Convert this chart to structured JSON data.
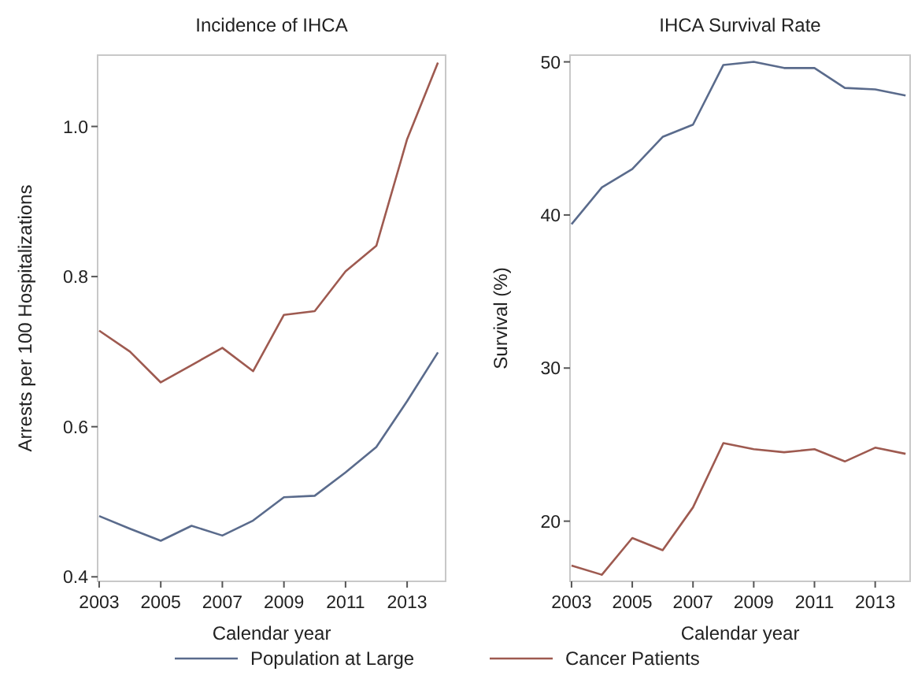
{
  "chart_data": [
    {
      "type": "line",
      "title": "Incidence of IHCA",
      "xlabel": "Calendar year",
      "ylabel": "Arrests per 100 Hospitalizations",
      "x": [
        2003,
        2004,
        2005,
        2006,
        2007,
        2008,
        2009,
        2010,
        2011,
        2012,
        2013,
        2014
      ],
      "xlim": [
        2002.95,
        2014.25
      ],
      "xticks": [
        2003,
        2005,
        2007,
        2009,
        2011,
        2013
      ],
      "ylim": [
        0.394,
        1.095
      ],
      "yticks": [
        {
          "value": 0.4,
          "label": "0.4"
        },
        {
          "value": 0.6,
          "label": "0.6"
        },
        {
          "value": 0.8,
          "label": "0.8"
        },
        {
          "value": 1.0,
          "label": "1.0"
        }
      ],
      "legend": "bottom",
      "series": [
        {
          "name": "Population at Large",
          "color": "#5a6b8c",
          "values": [
            0.481,
            0.464,
            0.448,
            0.468,
            0.455,
            0.475,
            0.506,
            0.508,
            0.539,
            0.573,
            0.634,
            0.699
          ]
        },
        {
          "name": "Cancer Patients",
          "color": "#9e5a50",
          "values": [
            0.728,
            0.7,
            0.659,
            0.682,
            0.705,
            0.674,
            0.749,
            0.754,
            0.807,
            0.841,
            0.983,
            1.085
          ]
        }
      ]
    },
    {
      "type": "line",
      "title": "IHCA Survival Rate",
      "xlabel": "Calendar year",
      "ylabel": "Survival (%)",
      "x": [
        2003,
        2004,
        2005,
        2006,
        2007,
        2008,
        2009,
        2010,
        2011,
        2012,
        2013,
        2014
      ],
      "xlim": [
        2002.95,
        2014.15
      ],
      "xticks": [
        2003,
        2005,
        2007,
        2009,
        2011,
        2013
      ],
      "ylim": [
        16.07,
        50.44
      ],
      "yticks": [
        20,
        30,
        40,
        50
      ],
      "series": [
        {
          "color": "#5a6b8c",
          "values": [
            39.4,
            41.8,
            43.0,
            45.1,
            45.9,
            49.8,
            50.0,
            49.6,
            49.6,
            48.3,
            48.2,
            47.8
          ]
        },
        {
          "color": "#9e5a50",
          "values": [
            17.1,
            16.5,
            18.9,
            18.1,
            20.9,
            25.1,
            24.7,
            24.5,
            24.7,
            23.9,
            24.8,
            24.4
          ]
        }
      ]
    }
  ]
}
